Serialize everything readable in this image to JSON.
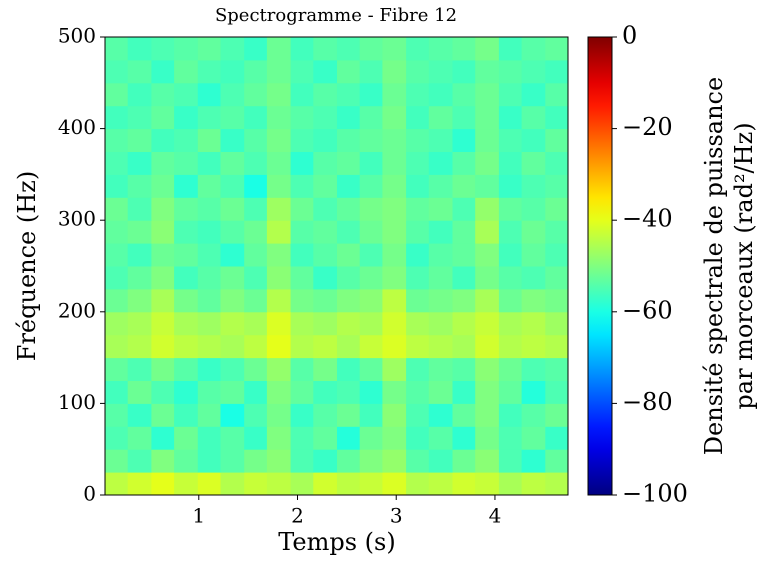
{
  "chart_data": {
    "type": "heatmap",
    "title": "Spectrogramme - Fibre 12",
    "x_label": "Temps (s)",
    "y_label": "Fréquence (Hz)",
    "colorbar_label": [
      "Densité spectrale de puissance",
      "par morceaux (rad²/Hz)"
    ],
    "colormap": "jet",
    "xlim": [
      0.05,
      4.74
    ],
    "ylim": [
      0,
      500
    ],
    "zlim": [
      -100,
      0
    ],
    "xticks": [
      1,
      2,
      3,
      4
    ],
    "yticks": [
      0,
      100,
      200,
      300,
      400,
      500
    ],
    "zticks": [
      {
        "value": -100,
        "label": "−100"
      },
      {
        "value": -80,
        "label": "−80"
      },
      {
        "value": -60,
        "label": "−60"
      },
      {
        "value": -40,
        "label": "−40"
      },
      {
        "value": -20,
        "label": "−20"
      },
      0
    ],
    "x_bins": [
      0.05,
      0.28,
      0.52,
      0.75,
      0.99,
      1.22,
      1.46,
      1.69,
      1.93,
      2.16,
      2.4,
      2.63,
      2.86,
      3.1,
      3.33,
      3.57,
      3.8,
      4.04,
      4.27,
      4.51,
      4.74
    ],
    "y_bins": [
      0,
      25,
      50,
      75,
      100,
      125,
      150,
      175,
      200,
      225,
      250,
      275,
      300,
      325,
      350,
      375,
      400,
      425,
      450,
      475,
      500
    ],
    "z": [
      [
        -44,
        -42,
        -40,
        -43,
        -41,
        -45,
        -43,
        -44,
        -46,
        -42,
        -44,
        -43,
        -41,
        -45,
        -44,
        -42,
        -43,
        -46,
        -44,
        -45
      ],
      [
        -52,
        -55,
        -50,
        -53,
        -56,
        -54,
        -51,
        -49,
        -55,
        -57,
        -53,
        -50,
        -48,
        -54,
        -56,
        -52,
        -49,
        -55,
        -58,
        -53
      ],
      [
        -55,
        -53,
        -58,
        -52,
        -56,
        -54,
        -57,
        -50,
        -55,
        -53,
        -59,
        -52,
        -50,
        -56,
        -54,
        -58,
        -51,
        -55,
        -53,
        -57
      ],
      [
        -54,
        -57,
        -52,
        -56,
        -53,
        -60,
        -55,
        -51,
        -57,
        -54,
        -52,
        -56,
        -49,
        -55,
        -58,
        -53,
        -50,
        -56,
        -54,
        -52
      ],
      [
        -56,
        -52,
        -55,
        -58,
        -54,
        -53,
        -57,
        -50,
        -53,
        -56,
        -55,
        -58,
        -51,
        -54,
        -52,
        -57,
        -50,
        -53,
        -59,
        -55
      ],
      [
        -53,
        -55,
        -51,
        -54,
        -57,
        -55,
        -52,
        -48,
        -54,
        -51,
        -56,
        -53,
        -47,
        -55,
        -53,
        -54,
        -49,
        -52,
        -55,
        -54
      ],
      [
        -46,
        -45,
        -42,
        -44,
        -45,
        -46,
        -44,
        -40,
        -45,
        -44,
        -46,
        -43,
        -41,
        -44,
        -45,
        -46,
        -42,
        -45,
        -44,
        -45
      ],
      [
        -47,
        -46,
        -43,
        -46,
        -47,
        -45,
        -46,
        -41,
        -46,
        -47,
        -45,
        -46,
        -42,
        -46,
        -47,
        -45,
        -43,
        -46,
        -45,
        -47
      ],
      [
        -52,
        -50,
        -46,
        -51,
        -53,
        -50,
        -52,
        -45,
        -51,
        -52,
        -50,
        -49,
        -44,
        -52,
        -51,
        -50,
        -46,
        -52,
        -50,
        -51
      ],
      [
        -55,
        -53,
        -50,
        -56,
        -54,
        -52,
        -55,
        -49,
        -53,
        -57,
        -54,
        -52,
        -50,
        -55,
        -53,
        -56,
        -51,
        -54,
        -55,
        -53
      ],
      [
        -54,
        -56,
        -52,
        -53,
        -55,
        -58,
        -53,
        -50,
        -56,
        -54,
        -52,
        -55,
        -51,
        -57,
        -54,
        -53,
        -50,
        -56,
        -53,
        -55
      ],
      [
        -53,
        -52,
        -49,
        -55,
        -56,
        -54,
        -52,
        -45,
        -54,
        -53,
        -55,
        -52,
        -50,
        -54,
        -56,
        -53,
        -46,
        -55,
        -52,
        -54
      ],
      [
        -52,
        -55,
        -50,
        -53,
        -54,
        -52,
        -55,
        -47,
        -52,
        -55,
        -53,
        -51,
        -50,
        -53,
        -52,
        -55,
        -48,
        -53,
        -54,
        -52
      ],
      [
        -56,
        -54,
        -52,
        -58,
        -53,
        -55,
        -60,
        -51,
        -55,
        -53,
        -57,
        -54,
        -51,
        -56,
        -54,
        -52,
        -53,
        -57,
        -55,
        -54
      ],
      [
        -55,
        -57,
        -53,
        -54,
        -56,
        -53,
        -55,
        -52,
        -58,
        -54,
        -53,
        -56,
        -52,
        -55,
        -57,
        -54,
        -51,
        -56,
        -53,
        -55
      ],
      [
        -54,
        -53,
        -56,
        -55,
        -52,
        -57,
        -54,
        -51,
        -55,
        -56,
        -54,
        -53,
        -52,
        -54,
        -55,
        -58,
        -52,
        -55,
        -56,
        -53
      ],
      [
        -56,
        -55,
        -53,
        -57,
        -55,
        -54,
        -56,
        -52,
        -54,
        -55,
        -57,
        -54,
        -51,
        -56,
        -53,
        -55,
        -52,
        -57,
        -54,
        -56
      ],
      [
        -53,
        -56,
        -54,
        -55,
        -58,
        -55,
        -53,
        -51,
        -56,
        -54,
        -55,
        -57,
        -52,
        -55,
        -56,
        -54,
        -52,
        -55,
        -57,
        -54
      ],
      [
        -55,
        -54,
        -57,
        -53,
        -55,
        -56,
        -54,
        -52,
        -55,
        -57,
        -53,
        -55,
        -51,
        -54,
        -55,
        -56,
        -53,
        -54,
        -55,
        -56
      ],
      [
        -54,
        -56,
        -55,
        -54,
        -53,
        -55,
        -57,
        -52,
        -56,
        -54,
        -55,
        -53,
        -52,
        -55,
        -54,
        -53,
        -51,
        -56,
        -54,
        -53
      ]
    ]
  }
}
